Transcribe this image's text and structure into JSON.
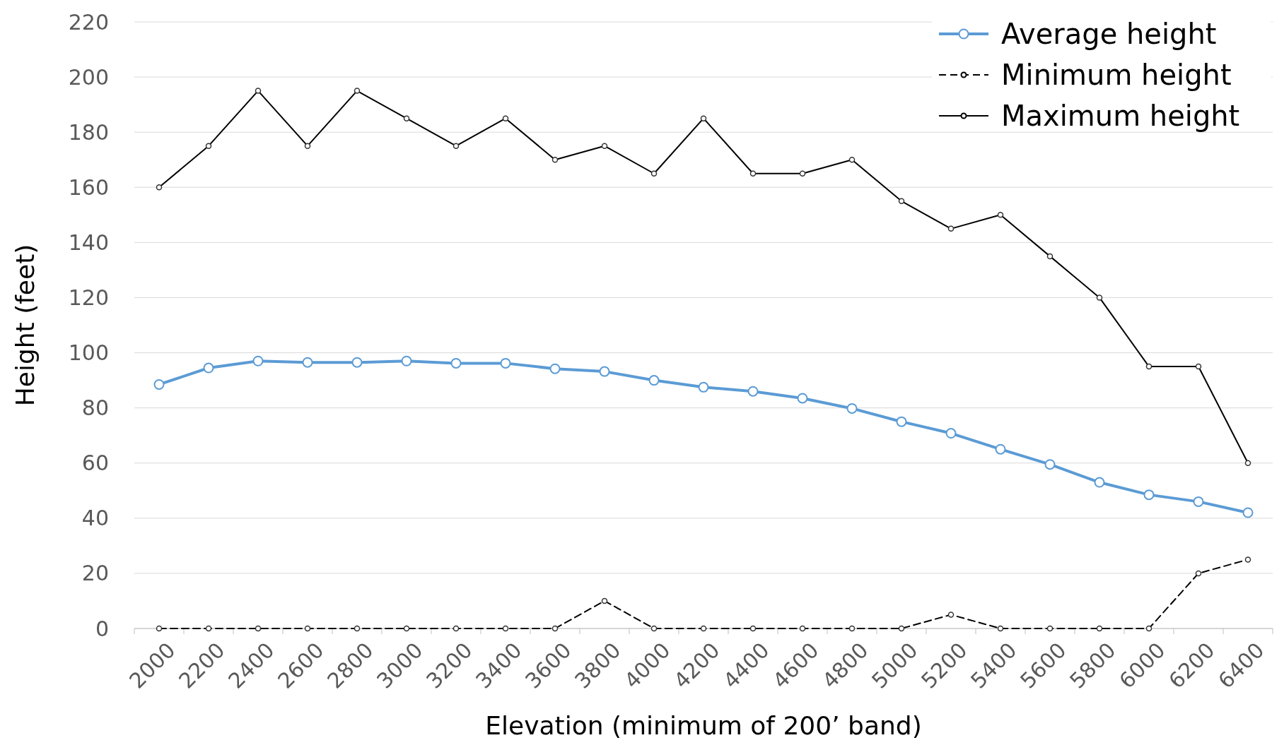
{
  "chart_data": {
    "type": "line",
    "xlabel": "Elevation (minimum of 200’ band)",
    "ylabel": "Height (feet)",
    "categories": [
      "2000",
      "2200",
      "2400",
      "2600",
      "2800",
      "3000",
      "3200",
      "3400",
      "3600",
      "3800",
      "4000",
      "4200",
      "4400",
      "4600",
      "4800",
      "5000",
      "5200",
      "5400",
      "5600",
      "5800",
      "6000",
      "6200",
      "6400"
    ],
    "series": [
      {
        "name": "Average height",
        "color": "#5b9bd5",
        "line_style": "solid",
        "values": [
          88.5,
          94.5,
          97,
          96.5,
          96.5,
          97,
          96.2,
          96.2,
          94.2,
          93.2,
          90,
          87.5,
          86,
          83.5,
          79.8,
          75,
          70.8,
          65,
          59.5,
          53,
          48.5,
          46,
          42
        ]
      },
      {
        "name": "Minimum height",
        "color": "#000000",
        "line_style": "dashed",
        "values": [
          0,
          0,
          0,
          0,
          0,
          0,
          0,
          0,
          0,
          10,
          0,
          0,
          0,
          0,
          0,
          0,
          5,
          0,
          0,
          0,
          0,
          20,
          25
        ]
      },
      {
        "name": "Maximum height",
        "color": "#000000",
        "line_style": "solid",
        "values": [
          160,
          175,
          195,
          175,
          195,
          185,
          175,
          185,
          170,
          175,
          165,
          185,
          165,
          165,
          170,
          155,
          145,
          150,
          135,
          120,
          95,
          95,
          60
        ]
      }
    ],
    "ylim": [
      0,
      220
    ],
    "yticks": [
      0,
      20,
      40,
      60,
      80,
      100,
      120,
      140,
      160,
      180,
      200,
      220
    ],
    "grid": "y",
    "legend": "top right",
    "marker": "circle"
  }
}
